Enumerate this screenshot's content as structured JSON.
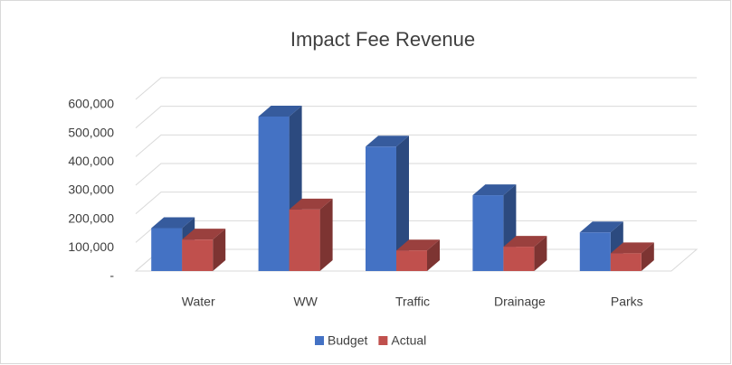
{
  "chart_data": {
    "type": "bar3d",
    "title": "Impact Fee Revenue",
    "categories": [
      "Water",
      "WW",
      "Traffic",
      "Drainage",
      "Parks"
    ],
    "series": [
      {
        "name": "Budget",
        "color": "#4472c4",
        "values": [
          150000,
          540000,
          435000,
          265000,
          135000
        ]
      },
      {
        "name": "Actual",
        "color": "#c0504d",
        "values": [
          110000,
          215000,
          72000,
          85000,
          62000
        ]
      }
    ],
    "ylim": [
      0,
      600000
    ],
    "yticks": [
      {
        "value": 0,
        "label": "-"
      },
      {
        "value": 100000,
        "label": "100,000"
      },
      {
        "value": 200000,
        "label": "200,000"
      },
      {
        "value": 300000,
        "label": "300,000"
      },
      {
        "value": 400000,
        "label": "400,000"
      },
      {
        "value": 500000,
        "label": "500,000"
      },
      {
        "value": 600000,
        "label": "600,000"
      }
    ],
    "grid": true,
    "legend": "bottom"
  }
}
